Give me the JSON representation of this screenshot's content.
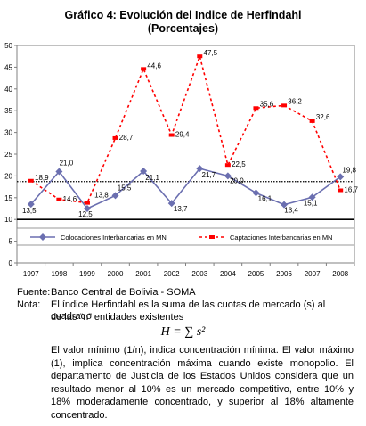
{
  "title_line1": "Gráfico 4: Evolución del Indice de Herfindahl",
  "title_line2": "(Porcentajes)",
  "chart_data": {
    "type": "line",
    "categories": [
      "1997",
      "1998",
      "1999",
      "2000",
      "2001",
      "2002",
      "2003",
      "2004",
      "2005",
      "2006",
      "2007",
      "2008"
    ],
    "ylim": [
      0,
      50
    ],
    "yticks": [
      "0",
      "5",
      "10",
      "15",
      "20",
      "25",
      "30",
      "35",
      "40",
      "45",
      "50"
    ],
    "reference_lines": [
      10,
      18.7
    ],
    "series": [
      {
        "name": "Colocaciones Interbancarias en MN",
        "color": "#6b6fb0",
        "values": [
          13.5,
          21.0,
          12.5,
          15.5,
          21.1,
          13.7,
          21.7,
          20.0,
          16.1,
          13.4,
          15.1,
          19.8
        ],
        "labels": [
          "13,5",
          "21,0",
          "12,5",
          "15,5",
          "21,1",
          "13,7",
          "21,7",
          "20,0",
          "16,1",
          "13,4",
          "15,1",
          "19,8"
        ]
      },
      {
        "name": "Captaciones Interbancarias en MN",
        "color": "#ff0000",
        "values": [
          18.9,
          14.6,
          13.8,
          28.7,
          44.6,
          29.4,
          47.5,
          22.5,
          35.6,
          36.2,
          32.6,
          16.7
        ],
        "labels": [
          "18,9",
          "14,6",
          "13,8",
          "28,7",
          "44,6",
          "29,4",
          "47,5",
          "22,5",
          "35,6",
          "36,2",
          "32,6",
          "16,7"
        ]
      }
    ]
  },
  "footer": {
    "fuente_label": "Fuente:",
    "fuente_text": "Banco Central de Bolivia - SOMA",
    "nota_label": "Nota:",
    "nota_line1": "El índice Herfindahl es la suma de las cuotas de mercado (s) al cuadrado",
    "nota_line2": "de las “n” entidades existentes",
    "formula": "H = ∑ s²",
    "paragraph": "El valor mínimo (1/n), indica concentración mínima. El valor máximo (1), implica concentración máxima cuando existe monopolio. El departamento de Justicia de los Estados Unidos considera que un resultado menor al 10% es un mercado competitivo, entre 10% y 18% moderadamente concentrado, y superior al 18% altamente concentrado."
  }
}
